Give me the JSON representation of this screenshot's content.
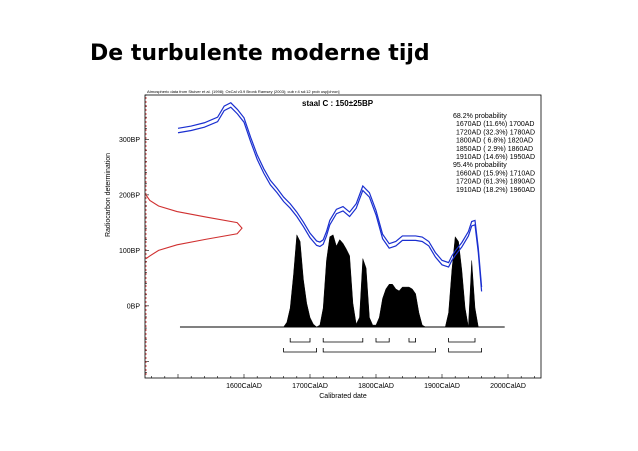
{
  "slide": {
    "title": "De turbulente moderne tijd"
  },
  "chart_data": {
    "type": "area",
    "credit": "Atmospheric data from Stuiver et al. (1998); OxCal v3.9 Bronk Ramsey (2003); cub r:4 sd:12 prob usp[chron]",
    "sample_label": "staal C : 150±25BP",
    "xlabel": "Calibrated date",
    "ylabel": "Radiocarbon determination",
    "xlim": [
      1450,
      2050
    ],
    "ylim": [
      -130,
      380
    ],
    "x_ticks": [
      {
        "value": 1600,
        "label": "1600CalAD"
      },
      {
        "value": 1700,
        "label": "1700CalAD"
      },
      {
        "value": 1800,
        "label": "1800CalAD"
      },
      {
        "value": 1900,
        "label": "1900CalAD"
      },
      {
        "value": 2000,
        "label": "2000CalAD"
      }
    ],
    "y_ticks": [
      {
        "value": 0,
        "label": "0BP"
      },
      {
        "value": 100,
        "label": "100BP"
      },
      {
        "value": 200,
        "label": "200BP"
      },
      {
        "value": 300,
        "label": "300BP"
      }
    ],
    "calibration_curve": {
      "x": [
        1500,
        1520,
        1540,
        1560,
        1570,
        1580,
        1590,
        1600,
        1610,
        1620,
        1630,
        1640,
        1650,
        1660,
        1670,
        1680,
        1690,
        1700,
        1710,
        1715,
        1720,
        1725,
        1730,
        1740,
        1750,
        1760,
        1770,
        1780,
        1790,
        1800,
        1810,
        1820,
        1830,
        1840,
        1850,
        1860,
        1870,
        1880,
        1890,
        1900,
        1910,
        1915,
        1920,
        1930,
        1940,
        1945,
        1950,
        1955,
        1960
      ],
      "y": [
        316,
        320,
        326,
        336,
        356,
        362,
        350,
        335,
        300,
        268,
        243,
        222,
        208,
        192,
        180,
        165,
        147,
        127,
        113,
        111,
        115,
        130,
        150,
        170,
        175,
        165,
        180,
        212,
        200,
        168,
        125,
        108,
        112,
        122,
        122,
        122,
        120,
        112,
        92,
        78,
        74,
        86,
        95,
        110,
        130,
        148,
        150,
        100,
        30
      ]
    },
    "radiocarbon_distribution": {
      "y": [
        200,
        190,
        180,
        170,
        160,
        150,
        140,
        130,
        120,
        110,
        100,
        90,
        85
      ],
      "p": [
        0.01,
        0.05,
        0.14,
        0.33,
        0.63,
        0.95,
        1.0,
        0.95,
        0.63,
        0.33,
        0.14,
        0.05,
        0.01
      ],
      "measurement": 150,
      "error": 25
    },
    "posterior_distribution": {
      "x": [
        1660,
        1665,
        1670,
        1675,
        1680,
        1685,
        1690,
        1695,
        1700,
        1705,
        1710,
        1715,
        1720,
        1725,
        1730,
        1735,
        1740,
        1745,
        1750,
        1755,
        1760,
        1765,
        1770,
        1775,
        1780,
        1785,
        1790,
        1795,
        1800,
        1805,
        1810,
        1815,
        1820,
        1825,
        1830,
        1835,
        1840,
        1845,
        1850,
        1855,
        1860,
        1865,
        1870,
        1875,
        1880,
        1885,
        1890,
        1895,
        1900,
        1905,
        1910,
        1915,
        1920,
        1925,
        1930,
        1935,
        1940,
        1945,
        1950,
        1955
      ],
      "p": [
        0,
        0.05,
        0.2,
        0.55,
        0.97,
        0.9,
        0.5,
        0.25,
        0.1,
        0.03,
        0,
        0.02,
        0.2,
        0.7,
        0.95,
        0.97,
        0.85,
        0.92,
        0.88,
        0.82,
        0.75,
        0.25,
        0.03,
        0.1,
        0.72,
        0.62,
        0.1,
        0.02,
        0.02,
        0.1,
        0.3,
        0.4,
        0.45,
        0.45,
        0.4,
        0.38,
        0.42,
        0.42,
        0.42,
        0.4,
        0.35,
        0.15,
        0.02,
        0,
        0,
        0,
        0,
        0,
        0,
        0,
        0.15,
        0.6,
        0.95,
        0.9,
        0.6,
        0.2,
        0,
        0.7,
        0.2,
        0
      ]
    },
    "ranges_68": [
      [
        1670,
        1700
      ],
      [
        1720,
        1780
      ],
      [
        1800,
        1820
      ],
      [
        1850,
        1860
      ],
      [
        1910,
        1950
      ]
    ],
    "ranges_95": [
      [
        1660,
        1710
      ],
      [
        1720,
        1890
      ],
      [
        1910,
        1960
      ]
    ],
    "probabilities": [
      "68.2% probability",
      "1670AD (11.6%) 1700AD",
      "1720AD (32.3%) 1780AD",
      "1800AD ( 6.8%) 1820AD",
      "1850AD ( 2.9%) 1860AD",
      "1910AD (14.6%) 1950AD",
      "95.4% probability",
      "1660AD (15.9%) 1710AD",
      "1720AD (61.3%) 1890AD",
      "1910AD (18.2%) 1960AD"
    ],
    "grid": false,
    "colors": {
      "curve": "#1a2fd0",
      "distribution": "#d03030",
      "posterior": "#000000",
      "frame": "#000000"
    }
  }
}
